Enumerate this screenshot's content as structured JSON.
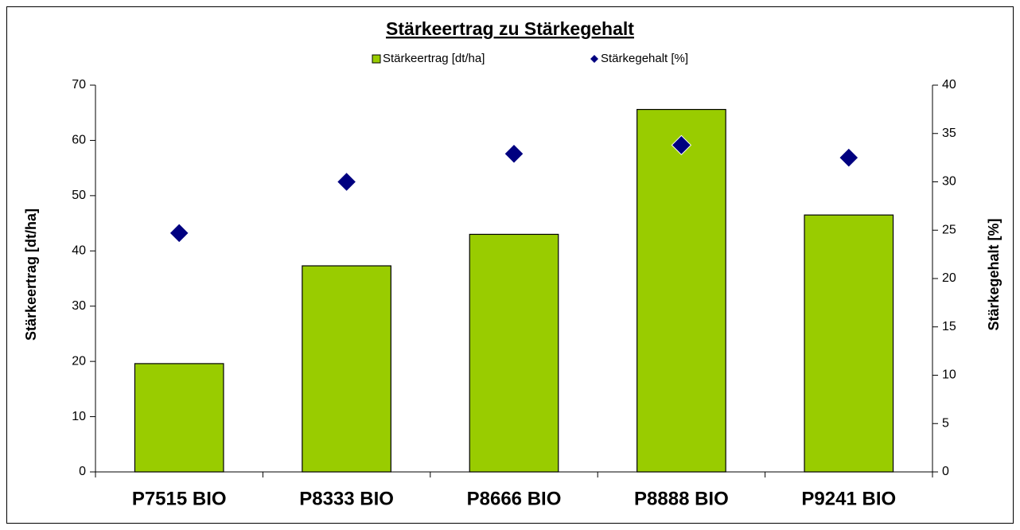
{
  "chart_data": {
    "type": "bar",
    "title": "Stärkeertrag zu Stärkegehalt",
    "categories": [
      "P7515 BIO",
      "P8333 BIO",
      "P8666 BIO",
      "P8888 BIO",
      "P9241 BIO"
    ],
    "series": [
      {
        "name": "Stärkeertrag [dt/ha]",
        "type": "bar",
        "color": "#99cc00",
        "axis": "y",
        "values": [
          19.6,
          37.3,
          43.0,
          65.6,
          46.5
        ]
      },
      {
        "name": "Stärkegehalt [%]",
        "type": "scatter",
        "color": "#000080",
        "axis": "y2",
        "values": [
          24.7,
          30.0,
          32.9,
          33.8,
          32.5
        ]
      }
    ],
    "ylabel": "Stärkeertrag [dt/ha]",
    "y2label": "Stärkegehalt [%]",
    "ylim": [
      0,
      70
    ],
    "yticks": [
      0,
      10,
      20,
      30,
      40,
      50,
      60,
      70
    ],
    "y2lim": [
      0,
      40
    ],
    "y2ticks": [
      0,
      5,
      10,
      15,
      20,
      25,
      30,
      35,
      40
    ],
    "legend": "top",
    "grid": false
  }
}
